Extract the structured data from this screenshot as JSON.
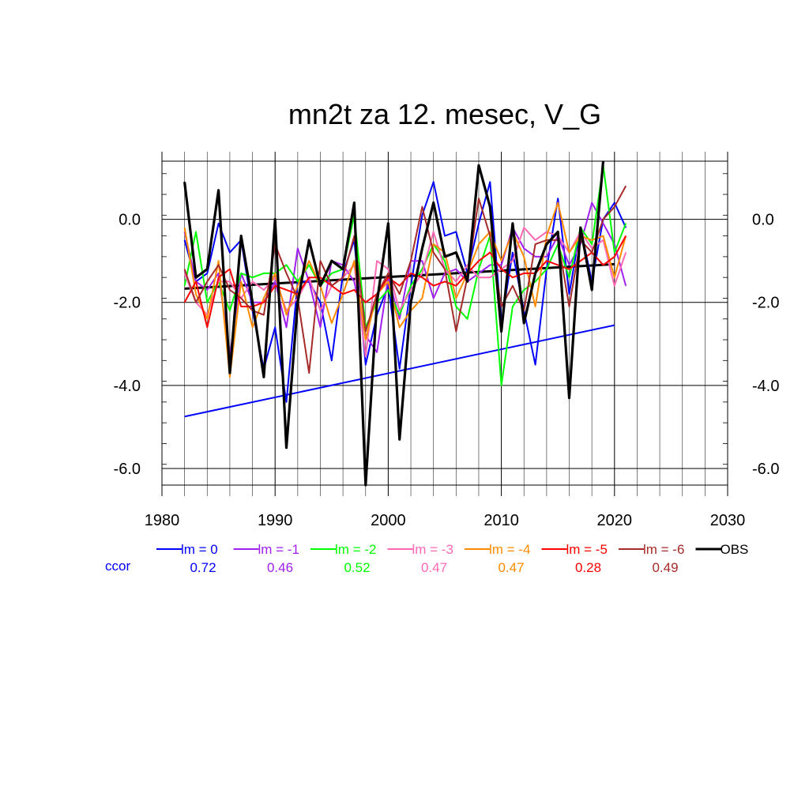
{
  "chart_data": {
    "type": "line",
    "title": "mn2t za 12. mesec, V_G",
    "xlim": [
      1980,
      2030
    ],
    "ylim": [
      -6.4,
      1.4
    ],
    "x_ticks": [
      "1980",
      "1990",
      "2000",
      "2010",
      "2020",
      "2030"
    ],
    "x_tick_values": [
      1980,
      1990,
      2000,
      2010,
      2020,
      2030
    ],
    "y_ticks": [
      "-6.0",
      "-4.0",
      "-2.0",
      "0.0"
    ],
    "y_tick_values": [
      -6,
      -4,
      -2,
      0
    ],
    "grid": true,
    "legend_position": "bottom",
    "ccor_label": "ccor",
    "x": [
      1982,
      1983,
      1984,
      1985,
      1986,
      1987,
      1988,
      1989,
      1990,
      1991,
      1992,
      1993,
      1994,
      1995,
      1996,
      1997,
      1998,
      1999,
      2000,
      2001,
      2002,
      2003,
      2004,
      2005,
      2006,
      2007,
      2008,
      2009,
      2010,
      2011,
      2012,
      2013,
      2014,
      2015,
      2016,
      2017,
      2018,
      2019,
      2020,
      2021
    ],
    "series": [
      {
        "name": "lm = 0",
        "ccor": "0.72",
        "color": "#0000ff",
        "values": [
          -0.5,
          -1.5,
          -1.3,
          -0.1,
          -0.8,
          -0.5,
          -2.2,
          -3.6,
          -2.6,
          -4.4,
          -1.5,
          -1.5,
          -2.0,
          -3.4,
          -1.3,
          -0.5,
          -3.5,
          -2.3,
          -1.6,
          -3.6,
          -1.6,
          0.1,
          0.9,
          -0.4,
          -0.3,
          -1.3,
          -0.1,
          0.9,
          -2.5,
          -0.8,
          -2.2,
          -3.5,
          -1.2,
          0.5,
          -1.8,
          -0.2,
          -1.5,
          0.0,
          0.4,
          -0.2
        ]
      },
      {
        "name": "lm = -1",
        "ccor": "0.46",
        "color": "#a020f0",
        "values": [
          -0.3,
          -1.5,
          -1.7,
          -1.3,
          -3.3,
          -1.3,
          -2.0,
          -2.0,
          -1.5,
          -2.6,
          -0.7,
          -1.5,
          -2.6,
          -1.0,
          -1.1,
          -1.5,
          -2.8,
          -3.2,
          -1.4,
          -2.4,
          -1.0,
          -1.0,
          -1.9,
          -1.3,
          -1.2,
          -1.5,
          -1.3,
          -1.1,
          -1.1,
          -0.2,
          -0.7,
          -0.9,
          -0.9,
          -0.4,
          -1.1,
          -0.6,
          0.4,
          -0.1,
          -0.6,
          -1.6
        ]
      },
      {
        "name": "lm = -2",
        "ccor": "0.52",
        "color": "#00ff00",
        "values": [
          -1.6,
          -0.3,
          -2.0,
          -1.5,
          -2.2,
          -1.3,
          -1.4,
          -1.3,
          -1.3,
          -1.1,
          -1.5,
          -1.1,
          -1.6,
          -1.3,
          -1.2,
          0.1,
          -2.6,
          -2.0,
          -1.7,
          -2.3,
          -1.6,
          -1.2,
          -0.6,
          -1.0,
          -2.1,
          -2.4,
          -1.2,
          -0.4,
          -4.0,
          -2.1,
          -1.7,
          -1.5,
          -1.2,
          -0.6,
          -1.4,
          -0.2,
          -0.6,
          1.3,
          -0.8,
          -0.1
        ]
      },
      {
        "name": "lm = -3",
        "ccor": "0.47",
        "color": "#ff69b4",
        "values": [
          -1.3,
          -2.0,
          -2.3,
          -1.5,
          -1.5,
          -1.9,
          -1.5,
          -1.7,
          -1.4,
          -2.2,
          -1.9,
          -1.4,
          -2.2,
          -1.6,
          -1.4,
          -1.1,
          -3.3,
          -1.0,
          -1.2,
          -2.2,
          -1.7,
          -1.3,
          -0.3,
          -1.2,
          -1.5,
          -1.1,
          -1.4,
          -1.4,
          -1.2,
          -1.0,
          -0.2,
          -0.5,
          -0.3,
          -0.4,
          -0.8,
          -0.3,
          -0.7,
          -0.5,
          -1.6,
          -0.8
        ]
      },
      {
        "name": "lm = -4",
        "ccor": "0.47",
        "color": "#ff8c00",
        "values": [
          -0.2,
          -1.8,
          -2.4,
          -1.0,
          -3.8,
          -1.5,
          -2.6,
          -1.9,
          -1.3,
          -2.3,
          -1.6,
          -1.0,
          -1.6,
          -2.5,
          -1.8,
          -1.0,
          -2.9,
          -1.8,
          -1.5,
          -2.6,
          -2.2,
          -1.9,
          -0.6,
          -0.8,
          -1.9,
          -1.3,
          -0.6,
          -0.3,
          -1.0,
          -0.3,
          -0.9,
          -2.1,
          -0.4,
          0.4,
          -0.8,
          -0.4,
          -0.5,
          -0.4,
          -1.4,
          -0.4
        ]
      },
      {
        "name": "lm = -5",
        "ccor": "0.28",
        "color": "#ff0000",
        "values": [
          -2.0,
          -1.5,
          -2.6,
          -1.4,
          -1.2,
          -2.1,
          -2.1,
          -2.0,
          -1.6,
          -1.7,
          -1.8,
          -1.4,
          -1.4,
          -1.6,
          -1.8,
          -1.7,
          -2.0,
          -1.8,
          -1.4,
          -1.6,
          -1.3,
          -1.4,
          -1.6,
          -1.5,
          -1.6,
          -1.3,
          -1.0,
          -0.8,
          -1.2,
          -1.4,
          -1.3,
          -1.3,
          -1.0,
          -1.1,
          -1.2,
          -1.0,
          -0.8,
          -1.1,
          -0.9,
          -0.4
        ]
      },
      {
        "name": "lm = -6",
        "ccor": "0.49",
        "color": "#a52a2a",
        "values": [
          -1.2,
          -2.0,
          -1.5,
          -1.1,
          -1.7,
          -1.9,
          -2.2,
          -2.3,
          -0.6,
          -1.3,
          -1.9,
          -3.7,
          -1.0,
          -1.6,
          -1.4,
          -0.4,
          -2.7,
          -1.8,
          -1.3,
          -1.8,
          -1.0,
          0.3,
          -0.8,
          -1.2,
          -2.7,
          -1.4,
          0.5,
          -0.4,
          -2.1,
          -1.6,
          -2.2,
          -0.6,
          -0.5,
          -0.5,
          -2.1,
          -0.5,
          -0.8,
          0.0,
          0.3,
          0.8
        ]
      },
      {
        "name": "OBS",
        "ccor": "",
        "color": "#000000",
        "values": [
          0.9,
          -1.4,
          -1.2,
          0.7,
          -3.7,
          -0.4,
          -2.0,
          -3.8,
          0.0,
          -5.5,
          -2.0,
          -0.5,
          -1.6,
          -1.0,
          -1.2,
          0.4,
          -6.4,
          -2.0,
          -0.1,
          -5.3,
          -2.0,
          -0.7,
          0.4,
          -0.9,
          -0.8,
          -1.5,
          1.3,
          0.3,
          -2.7,
          -0.1,
          -2.5,
          -1.3,
          -0.6,
          -0.3,
          -4.3,
          -0.2,
          -1.7,
          1.4,
          null,
          null
        ]
      }
    ],
    "trend_lines": [
      {
        "name": "lm = 0 trend",
        "color": "#0000ff",
        "x": [
          1982,
          2020
        ],
        "y": [
          -4.75,
          -2.55
        ]
      },
      {
        "name": "OBS trend",
        "color": "#000000",
        "x": [
          1982,
          2020
        ],
        "y": [
          -1.67,
          -1.08
        ]
      }
    ]
  }
}
